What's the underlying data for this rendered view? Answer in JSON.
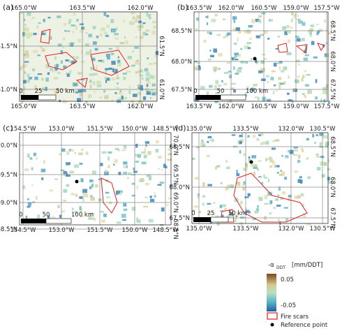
{
  "panels": [
    {
      "label": "(a)",
      "lon_ticks": [
        "165.0°W",
        "163.5°W",
        "162.0°W"
      ],
      "lat_ticks": [
        "61.5°N",
        "61.0°N"
      ],
      "scale_labels": [
        "0",
        "25",
        "50 km"
      ]
    },
    {
      "label": "(b)",
      "lon_ticks": [
        "163.5°W",
        "162.0°W",
        "160.5°W",
        "159.0°W",
        "157.5°W"
      ],
      "lat_ticks": [
        "68.5°N",
        "68.0°N",
        "67.5°N"
      ],
      "scale_labels": [
        "0",
        "50",
        "100 km"
      ]
    },
    {
      "label": "(c)",
      "lon_ticks": [
        "154.5°W",
        "153.0°W",
        "151.5°W",
        "150.0°W",
        "148.5°W"
      ],
      "lat_ticks": [
        "70.0°N",
        "69.5°N",
        "69.0°N",
        "68.5°N"
      ],
      "scale_labels": [
        "0",
        "50",
        "100 km"
      ]
    },
    {
      "label": "(d)",
      "lon_ticks": [
        "135.0°W",
        "133.5°W",
        "132.0°W",
        "130.5°W"
      ],
      "lat_ticks": [
        "68.5°N",
        "68.0°N",
        "67.5°N"
      ],
      "scale_labels": [
        "0",
        "25",
        "50 km"
      ]
    }
  ],
  "legend": {
    "title": "-α",
    "title_subscript": "DDT",
    "title_unit": "[mm/DDT]",
    "colorbar_max": "0.05",
    "colorbar_min": "-0.05",
    "fire_scars": "Fire scars",
    "reference_point": "Reference point"
  }
}
